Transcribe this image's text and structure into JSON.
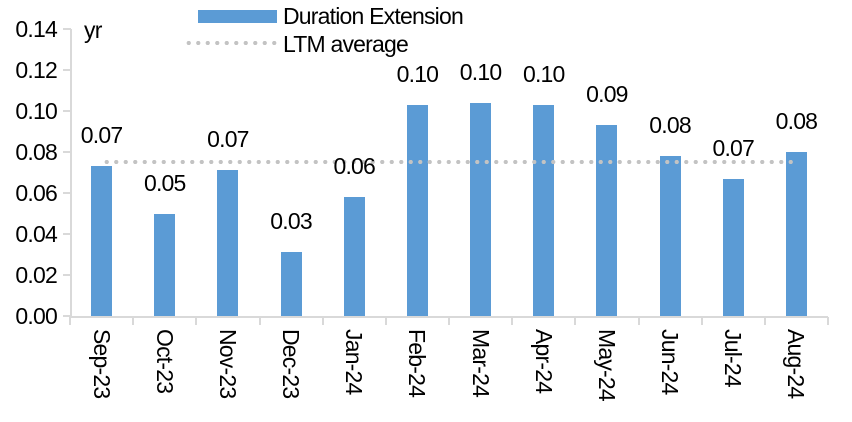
{
  "chart_data": {
    "type": "bar",
    "unit_label": "yr",
    "categories": [
      "Sep-23",
      "Oct-23",
      "Nov-23",
      "Dec-23",
      "Jan-24",
      "Feb-24",
      "Mar-24",
      "Apr-24",
      "May-24",
      "Jun-24",
      "Jul-24",
      "Aug-24"
    ],
    "series": [
      {
        "name": "Duration Extension",
        "type": "bar",
        "color": "#5b9bd5",
        "values": [
          0.073,
          0.05,
          0.071,
          0.031,
          0.058,
          0.103,
          0.104,
          0.103,
          0.093,
          0.078,
          0.067,
          0.08
        ],
        "data_labels": [
          "0.07",
          "0.05",
          "0.07",
          "0.03",
          "0.06",
          "0.10",
          "0.10",
          "0.10",
          "0.09",
          "0.08",
          "0.07",
          "0.08"
        ]
      },
      {
        "name": "LTM average",
        "type": "dotted-line",
        "color": "#c3c3c3",
        "value": 0.075
      }
    ],
    "y_axis": {
      "min": 0,
      "max": 0.14,
      "step": 0.02,
      "tick_labels": [
        "0.00",
        "0.02",
        "0.04",
        "0.06",
        "0.08",
        "0.10",
        "0.12",
        "0.14"
      ]
    },
    "legend_position": "top-center",
    "grid": "off",
    "axis_color": "#d9d9d9"
  }
}
